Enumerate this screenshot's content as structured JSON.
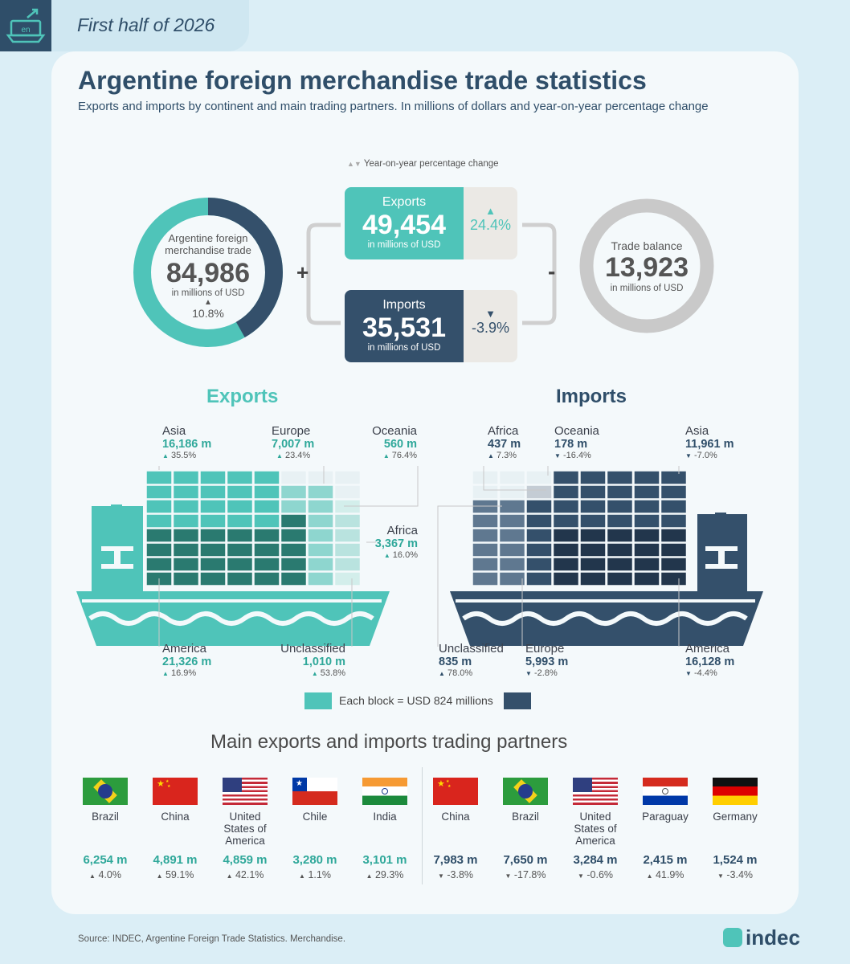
{
  "header": {
    "period": "First half of 2026",
    "logo_text": "en"
  },
  "title": "Argentine foreign merchandise trade statistics",
  "subtitle": "Exports and imports by continent and main trading partners. In millions of dollars and year-on-year percentage change",
  "legend_pct": "Year-on-year percentage change",
  "total": {
    "label": "Argentine foreign merchandise trade",
    "value": "84,986",
    "unit": "in millions of USD",
    "pct": "10.8%",
    "exports_share": 0.582
  },
  "plus_sign": "+",
  "minus_sign": "-",
  "exports_box": {
    "label": "Exports",
    "value": "49,454",
    "unit": "in millions of USD",
    "pct": "24.4%"
  },
  "imports_box": {
    "label": "Imports",
    "value": "35,531",
    "unit": "in millions of USD",
    "pct": "-3.9%"
  },
  "balance": {
    "label": "Trade balance",
    "value": "13,923",
    "unit": "in millions of USD"
  },
  "exports_section": {
    "title": "Exports",
    "regions": [
      {
        "name": "Asia",
        "value": "16,186 m",
        "pct": "35.5%"
      },
      {
        "name": "Europe",
        "value": "7,007 m",
        "pct": "23.4%"
      },
      {
        "name": "Oceania",
        "value": "560 m",
        "pct": "76.4%"
      },
      {
        "name": "Africa",
        "value": "3,367 m",
        "pct": "16.0%"
      },
      {
        "name": "America",
        "value": "21,326 m",
        "pct": "16.9%"
      },
      {
        "name": "Unclassified",
        "value": "1,010 m",
        "pct": "53.8%"
      }
    ]
  },
  "imports_section": {
    "title": "Imports",
    "regions": [
      {
        "name": "Africa",
        "value": "437 m",
        "pct": "7.3%"
      },
      {
        "name": "Oceania",
        "value": "178 m",
        "pct": "-16.4%"
      },
      {
        "name": "Asia",
        "value": "11,961 m",
        "pct": "-7.0%"
      },
      {
        "name": "Unclassified",
        "value": "835 m",
        "pct": "78.0%"
      },
      {
        "name": "Europe",
        "value": "5,993 m",
        "pct": "-2.8%"
      },
      {
        "name": "America",
        "value": "16,128 m",
        "pct": "-4.4%"
      }
    ]
  },
  "block_legend": "Each block = USD 824 millions",
  "partners": {
    "title": "Main exports and imports trading partners",
    "exports": [
      {
        "country": "Brazil",
        "value": "6,254 m",
        "pct": "4.0%"
      },
      {
        "country": "China",
        "value": "4,891 m",
        "pct": "59.1%"
      },
      {
        "country": "United States of America",
        "value": "4,859 m",
        "pct": "42.1%"
      },
      {
        "country": "Chile",
        "value": "3,280 m",
        "pct": "1.1%"
      },
      {
        "country": "India",
        "value": "3,101 m",
        "pct": "29.3%"
      }
    ],
    "imports": [
      {
        "country": "China",
        "value": "7,983 m",
        "pct": "-3.8%"
      },
      {
        "country": "Brazil",
        "value": "7,650 m",
        "pct": "-17.8%"
      },
      {
        "country": "United States of America",
        "value": "3,284 m",
        "pct": "-0.6%"
      },
      {
        "country": "Paraguay",
        "value": "2,415 m",
        "pct": "41.9%"
      },
      {
        "country": "Germany",
        "value": "1,524 m",
        "pct": "-3.4%"
      }
    ]
  },
  "source": "Source: INDEC, Argentine Foreign Trade Statistics. Merchandise.",
  "brand": "indec",
  "colors": {
    "teal": "#4fc4b9",
    "teal_dark": "#2a7a70",
    "navy": "#34506b",
    "navy_dark": "#22364c",
    "gray": "#c9c9c9"
  }
}
